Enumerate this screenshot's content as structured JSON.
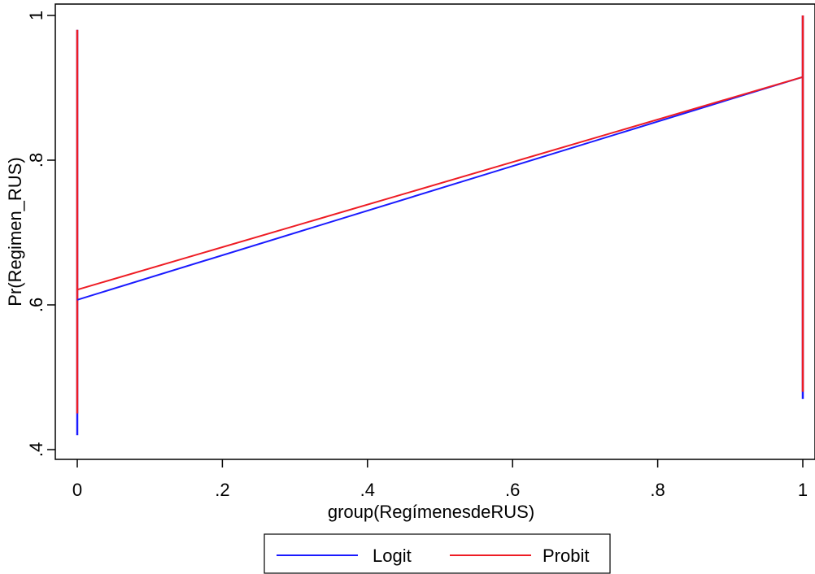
{
  "chart_data": {
    "type": "line",
    "title": "",
    "xlabel": "group(RegímenesdeRUS)",
    "ylabel": "Pr(Regimen_RUS)",
    "xlim": [
      0,
      1
    ],
    "ylim": [
      0.4,
      1
    ],
    "x_ticks": [
      0,
      0.2,
      0.4,
      0.6,
      0.8,
      1
    ],
    "x_tick_labels": [
      "0",
      ".2",
      ".4",
      ".6",
      ".8",
      "1"
    ],
    "y_ticks": [
      0.4,
      0.6,
      0.8,
      1
    ],
    "y_tick_labels": [
      ".4",
      ".6",
      ".8",
      "1"
    ],
    "grid": false,
    "legend_position": "bottom",
    "series": [
      {
        "name": "Logit",
        "color": "#1a1aff",
        "x": [
          0,
          1
        ],
        "values": [
          0.607,
          0.915
        ],
        "ci": [
          [
            0.42,
            0.98
          ],
          [
            0.47,
            1.0
          ]
        ]
      },
      {
        "name": "Probit",
        "color": "#ee1c24",
        "x": [
          0,
          1
        ],
        "values": [
          0.621,
          0.915
        ],
        "ci": [
          [
            0.45,
            0.98
          ],
          [
            0.48,
            1.0
          ]
        ]
      }
    ]
  }
}
